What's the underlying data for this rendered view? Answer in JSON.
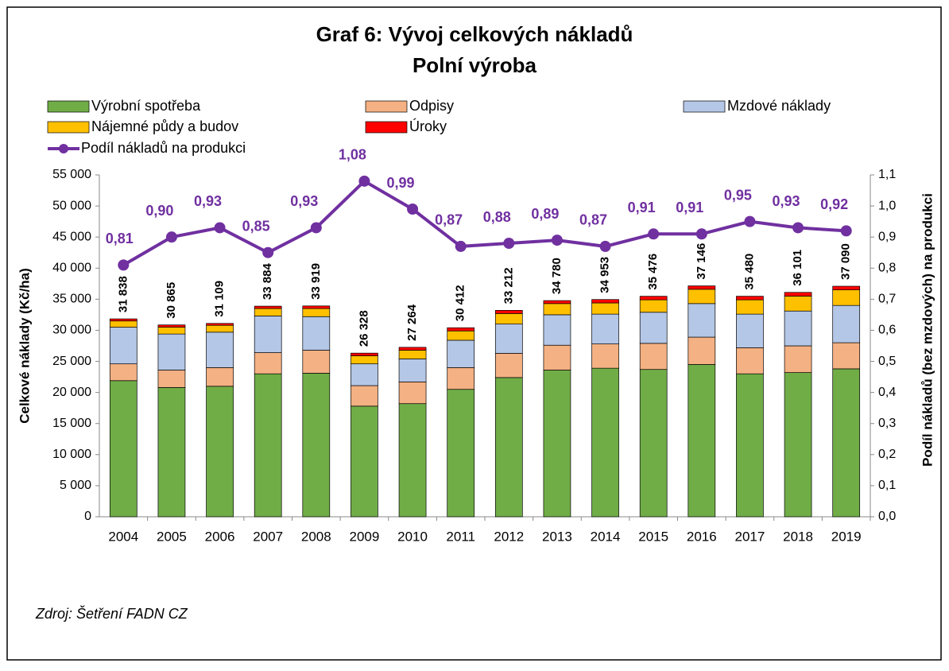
{
  "chart_data": {
    "type": "stacked_bar_line",
    "title": "Graf 6: Vývoj celkových nákladů",
    "subtitle": "Polní výroba",
    "y_label": "Celkové náklady (Kč/ha)",
    "y2_label": "Podíl nákladů (bez mzdových) na produkci",
    "source": "Zdroj: Šetření FADN CZ",
    "categories": [
      "2004",
      "2005",
      "2006",
      "2007",
      "2008",
      "2009",
      "2010",
      "2011",
      "2012",
      "2013",
      "2014",
      "2015",
      "2016",
      "2017",
      "2018",
      "2019"
    ],
    "series": [
      {
        "name": "Výrobní spotřeba",
        "color": "#70ad47",
        "values": [
          21900,
          20800,
          21000,
          23000,
          23100,
          17800,
          18200,
          20500,
          22400,
          23600,
          23900,
          23700,
          24500,
          23000,
          23200,
          23800
        ]
      },
      {
        "name": "Odpisy",
        "color": "#f4b183",
        "values": [
          2700,
          2800,
          3000,
          3400,
          3700,
          3300,
          3500,
          3500,
          3900,
          4000,
          3900,
          4200,
          4400,
          4200,
          4300,
          4200
        ]
      },
      {
        "name": "Mzdové náklady",
        "color": "#b4c7e7",
        "values": [
          5900,
          5800,
          5700,
          5900,
          5400,
          3500,
          3700,
          4400,
          4700,
          4900,
          4800,
          5000,
          5400,
          5400,
          5600,
          6000
        ]
      },
      {
        "name": "Nájemné půdy a budov",
        "color": "#ffc000",
        "values": [
          1000,
          1100,
          1100,
          1200,
          1300,
          1300,
          1400,
          1500,
          1700,
          1800,
          1800,
          2000,
          2300,
          2300,
          2400,
          2500
        ]
      },
      {
        "name": "Úroky",
        "color": "#ff0000",
        "values": [
          338,
          365,
          309,
          384,
          419,
          428,
          464,
          512,
          512,
          480,
          553,
          576,
          546,
          580,
          601,
          590
        ]
      },
      {
        "name": "Podíl nákladů na produkci",
        "color": "#7030a0",
        "axis": "y2",
        "values": [
          0.81,
          0.9,
          0.93,
          0.85,
          0.93,
          1.08,
          0.99,
          0.87,
          0.88,
          0.89,
          0.87,
          0.91,
          0.91,
          0.95,
          0.93,
          0.92
        ],
        "value_labels": [
          "0,81",
          "0,90",
          "0,93",
          "0,85",
          "0,93",
          "1,08",
          "0,99",
          "0,87",
          "0,88",
          "0,89",
          "0,87",
          "0,91",
          "0,91",
          "0,95",
          "0,93",
          "0,92"
        ]
      }
    ],
    "total_labels": [
      "31 838",
      "30 865",
      "31 109",
      "33 884",
      "33 919",
      "26 328",
      "27 264",
      "30 412",
      "33 212",
      "34 780",
      "34 953",
      "35 476",
      "37 146",
      "35 480",
      "36 101",
      "37 090"
    ],
    "ylim": [
      0,
      55000
    ],
    "yticks": [
      0,
      {
        "value": 5000,
        "label": "5 000"
      },
      {
        "value": 10000,
        "label": "10 000"
      },
      {
        "value": 15000,
        "label": "15 000"
      },
      {
        "value": 20000,
        "label": "20 000"
      },
      {
        "value": 25000,
        "label": "25 000"
      },
      {
        "value": 30000,
        "label": "30 000"
      },
      {
        "value": 35000,
        "label": "35 000"
      },
      {
        "value": 40000,
        "label": "40 000"
      },
      {
        "value": 45000,
        "label": "45 000"
      },
      {
        "value": 50000,
        "label": "50 000"
      },
      {
        "value": 55000,
        "label": "55 000"
      }
    ],
    "y2lim": [
      0,
      1.1
    ],
    "y2ticks": [
      {
        "value": 0,
        "label": "0,0"
      },
      {
        "value": 0.1,
        "label": "0,1"
      },
      {
        "value": 0.2,
        "label": "0,2"
      },
      {
        "value": 0.3,
        "label": "0,3"
      },
      {
        "value": 0.4,
        "label": "0,4"
      },
      {
        "value": 0.5,
        "label": "0,5"
      },
      {
        "value": 0.6,
        "label": "0,6"
      },
      {
        "value": 0.7,
        "label": "0,7"
      },
      {
        "value": 0.8,
        "label": "0,8"
      },
      {
        "value": 0.9,
        "label": "0,9"
      },
      {
        "value": 1.0,
        "label": "1,0"
      },
      {
        "value": 1.1,
        "label": "1,1"
      }
    ]
  }
}
